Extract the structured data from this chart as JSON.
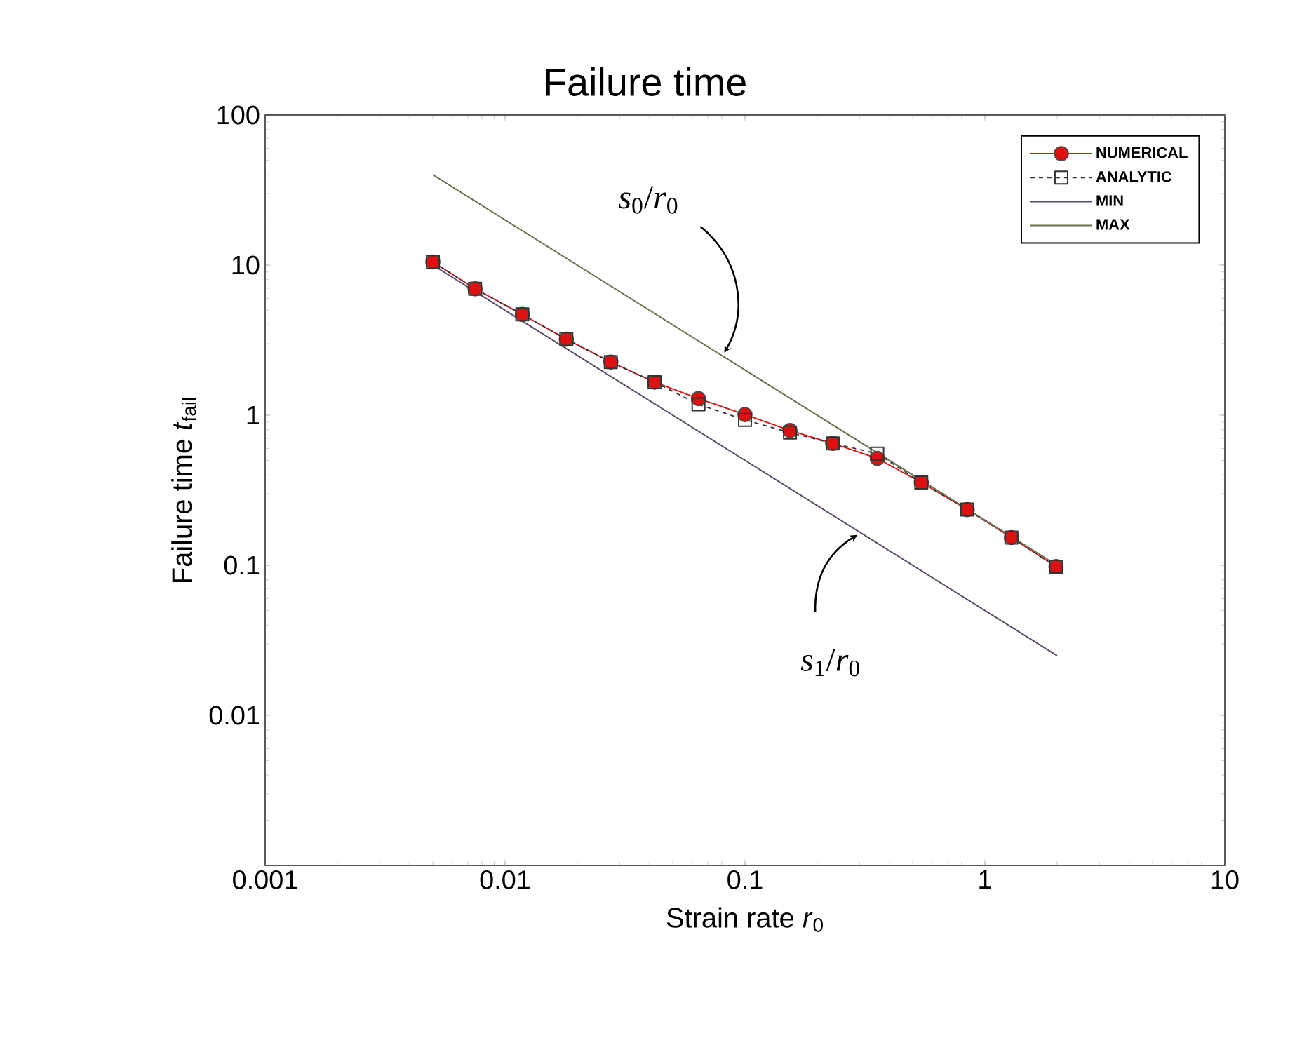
{
  "chart_data": {
    "type": "line",
    "title": "Failure time",
    "xlabel": "Strain rate *r*$_{0}$",
    "ylabel": "Failure time *t*$_{fail}$",
    "log": "xy",
    "xlim": [
      0.001,
      10
    ],
    "ylim": [
      0.001,
      100
    ],
    "xticks": [
      0.001,
      0.01,
      0.1,
      1,
      10
    ],
    "yticks": [
      {
        "value": 0.001,
        "label": null
      },
      0.01,
      0.1,
      1,
      10,
      100
    ],
    "legend": "top right",
    "grid": false,
    "series": [
      {
        "name": "NUMERICAL",
        "color": "#dd1111",
        "marker": "circle",
        "line_style": "solid",
        "x": [
          0.005,
          0.0075,
          0.0118,
          0.018,
          0.0276,
          0.042,
          0.064,
          0.1,
          0.154,
          0.232,
          0.356,
          0.543,
          0.844,
          1.29,
          1.98
        ],
        "values": [
          10.5,
          6.95,
          4.69,
          3.21,
          2.26,
          1.66,
          1.29,
          1.01,
          0.79,
          0.649,
          0.515,
          0.356,
          0.235,
          0.153,
          0.098
        ]
      },
      {
        "name": "ANALYTIC",
        "color": "#333333",
        "marker": "square",
        "line_style": "dashed",
        "x": [
          0.005,
          0.0075,
          0.0118,
          0.018,
          0.0276,
          0.042,
          0.064,
          0.1,
          0.154,
          0.232,
          0.356,
          0.543,
          0.844,
          1.29,
          1.98
        ],
        "values": [
          10.5,
          6.95,
          4.69,
          3.21,
          2.26,
          1.66,
          1.18,
          0.93,
          0.766,
          0.649,
          0.555,
          0.356,
          0.235,
          0.153,
          0.098
        ]
      },
      {
        "name": "MIN",
        "color": "#5a4a6a",
        "marker": "none",
        "line_style": "solid",
        "x": [
          0.005,
          2
        ],
        "values": [
          10,
          0.025
        ]
      },
      {
        "name": "MAX",
        "color": "#6e6e4e",
        "marker": "none",
        "line_style": "solid",
        "x": [
          0.005,
          2
        ],
        "values": [
          40,
          0.1
        ]
      }
    ],
    "annotations": [
      {
        "text": "*s*$_{0}$/*r*$_{0}$",
        "x": 0.082,
        "y": 2.44
      },
      {
        "text": "*s*$_{1}$/*r*$_{0}$",
        "x": 0.294,
        "y": 0.17
      }
    ]
  }
}
